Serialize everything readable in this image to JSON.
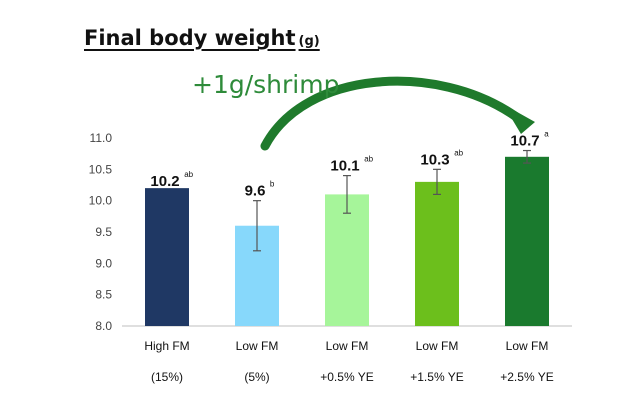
{
  "title": "Final body weight",
  "title_unit": "(g)",
  "annotation": "+1g/shrimp",
  "chart_data": {
    "type": "bar",
    "title": "Final body weight (g)",
    "xlabel": "",
    "ylabel": "",
    "ylim": [
      8.0,
      11.0
    ],
    "yticks": [
      "8.0",
      "8.5",
      "9.0",
      "9.5",
      "10.0",
      "10.5",
      "11.0"
    ],
    "grid": false,
    "categories": [
      {
        "line1": "High FM",
        "line2": "(15%)"
      },
      {
        "line1": "Low FM",
        "line2": "(5%)"
      },
      {
        "line1": "Low FM",
        "line2": "+0.5% YE"
      },
      {
        "line1": "Low FM",
        "line2": "+1.5% YE"
      },
      {
        "line1": "Low FM",
        "line2": "+2.5% YE"
      }
    ],
    "values": [
      10.2,
      9.6,
      10.1,
      10.3,
      10.7
    ],
    "value_labels": [
      "10.2",
      "9.6",
      "10.1",
      "10.3",
      "10.7"
    ],
    "significance": [
      "ab",
      "b",
      "ab",
      "ab",
      "a"
    ],
    "error_low": [
      null,
      9.2,
      9.8,
      10.1,
      10.6
    ],
    "error_high": [
      null,
      10.0,
      10.4,
      10.5,
      10.8
    ],
    "colors": [
      "#1f3864",
      "#87d8fb",
      "#a6f59a",
      "#6cbf1c",
      "#1a7a2e"
    ]
  },
  "arrow_color": "#1f7a2c"
}
